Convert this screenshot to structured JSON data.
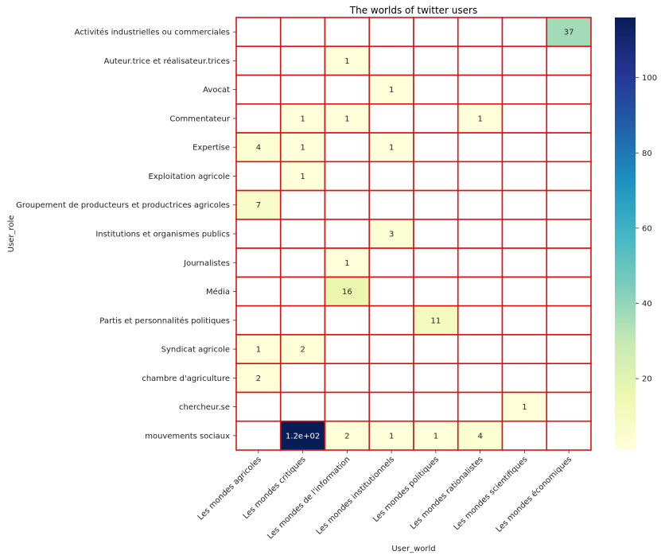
{
  "chart_data": {
    "type": "heatmap",
    "title": "The worlds of twitter users",
    "xlabel": "User_world",
    "ylabel": "User_role",
    "columns": [
      "Les mondes agricoles",
      "Les mondes critiques",
      "Les mondes de l'information",
      "Les mondes institutionnels",
      "Les mondes politiques",
      "Les mondes rationalistes",
      "Les mondes scientifiques",
      "Les mondes économiques"
    ],
    "rows": [
      "Activités industrielles ou commerciales",
      "Auteur.trice et réalisateur.trices",
      "Avocat",
      "Commentateur",
      "Expertise",
      "Exploitation agricole",
      "Groupement de producteurs et productrices agricoles",
      "Institutions et organismes publics",
      "Journalistes",
      "Média",
      "Partis et personnalités politiques",
      "Syndicat agricole",
      "chambre d'agriculture",
      "chercheur.se",
      "mouvements sociaux"
    ],
    "values": [
      [
        null,
        null,
        null,
        null,
        null,
        null,
        null,
        37
      ],
      [
        null,
        null,
        1,
        null,
        null,
        null,
        null,
        null
      ],
      [
        null,
        null,
        null,
        1,
        null,
        null,
        null,
        null
      ],
      [
        null,
        1,
        1,
        null,
        null,
        1,
        null,
        null
      ],
      [
        4,
        1,
        null,
        1,
        null,
        null,
        null,
        null
      ],
      [
        null,
        1,
        null,
        null,
        null,
        null,
        null,
        null
      ],
      [
        7,
        null,
        null,
        null,
        null,
        null,
        null,
        null
      ],
      [
        null,
        null,
        null,
        3,
        null,
        null,
        null,
        null
      ],
      [
        null,
        null,
        1,
        null,
        null,
        null,
        null,
        null
      ],
      [
        null,
        null,
        16,
        null,
        null,
        null,
        null,
        null
      ],
      [
        null,
        null,
        null,
        null,
        11,
        null,
        null,
        null
      ],
      [
        1,
        2,
        null,
        null,
        null,
        null,
        null,
        null
      ],
      [
        2,
        null,
        null,
        null,
        null,
        null,
        null,
        null
      ],
      [
        null,
        null,
        null,
        null,
        null,
        null,
        1,
        null
      ],
      [
        null,
        116,
        2,
        1,
        1,
        4,
        null,
        null
      ]
    ],
    "annotations": [
      [
        "",
        "",
        "",
        "",
        "",
        "",
        "",
        "37"
      ],
      [
        "",
        "",
        "1",
        "",
        "",
        "",
        "",
        ""
      ],
      [
        "",
        "",
        "",
        "1",
        "",
        "",
        "",
        ""
      ],
      [
        "",
        "1",
        "1",
        "",
        "",
        "1",
        "",
        ""
      ],
      [
        "4",
        "1",
        "",
        "1",
        "",
        "",
        "",
        ""
      ],
      [
        "",
        "1",
        "",
        "",
        "",
        "",
        "",
        ""
      ],
      [
        "7",
        "",
        "",
        "",
        "",
        "",
        "",
        ""
      ],
      [
        "",
        "",
        "",
        "3",
        "",
        "",
        "",
        ""
      ],
      [
        "",
        "",
        "1",
        "",
        "",
        "",
        "",
        ""
      ],
      [
        "",
        "",
        "16",
        "",
        "",
        "",
        "",
        ""
      ],
      [
        "",
        "",
        "",
        "",
        "11",
        "",
        "",
        ""
      ],
      [
        "1",
        "2",
        "",
        "",
        "",
        "",
        "",
        ""
      ],
      [
        "2",
        "",
        "",
        "",
        "",
        "",
        "",
        ""
      ],
      [
        "",
        "",
        "",
        "",
        "",
        "",
        "1",
        ""
      ],
      [
        "",
        "1.2e+02",
        "2",
        "1",
        "1",
        "4",
        "",
        ""
      ]
    ],
    "colormap": "YlGnBu",
    "vmin": 1,
    "vmax": 116,
    "colorbar_ticks": [
      20,
      40,
      60,
      80,
      100
    ],
    "cell_border_color": "#dd1111",
    "empty_cell_color": "#ffffff",
    "legend": "colorbar-right",
    "grid": false
  }
}
